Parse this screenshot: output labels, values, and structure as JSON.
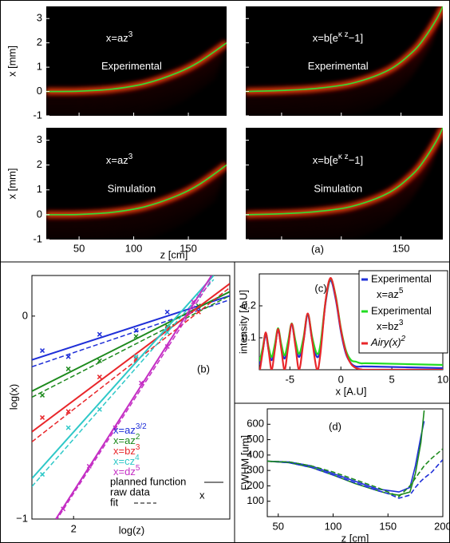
{
  "chart_data": [
    {
      "type": "heatmap",
      "label": "(a)",
      "xlabel": "z [cm]",
      "ylabel": "x [mm]",
      "xlim": [
        20,
        185
      ],
      "ylim": [
        -1,
        3.5
      ],
      "xticks": [
        50,
        100,
        150
      ],
      "yticks": [
        -1,
        0,
        1,
        2,
        3
      ],
      "color": "#33dd33",
      "subplots": [
        {
          "formula": "x=az",
          "exponent": "3",
          "text": "Experimental",
          "x": [
            20,
            50,
            80,
            110,
            140,
            160,
            185
          ],
          "values": [
            0,
            0.012,
            0.096,
            0.32,
            0.77,
            1.22,
            2.0
          ]
        },
        {
          "formula": "x=b[e",
          "exponent": "κ z",
          "formula_end": "−1]",
          "text": "Experimental",
          "x": [
            20,
            50,
            80,
            110,
            140,
            160,
            170,
            180,
            185
          ],
          "values": [
            0,
            0.04,
            0.13,
            0.35,
            0.89,
            1.64,
            2.23,
            3.0,
            3.5
          ]
        },
        {
          "formula": "x=az",
          "exponent": "3",
          "text": "Simulation",
          "x": [
            20,
            50,
            80,
            110,
            140,
            160,
            185
          ],
          "values": [
            0,
            0.012,
            0.096,
            0.32,
            0.77,
            1.22,
            2.0
          ]
        },
        {
          "formula": "x=b[e",
          "exponent": "κ z",
          "formula_end": "−1]",
          "text": "Simulation",
          "x": [
            20,
            50,
            80,
            110,
            140,
            160,
            170,
            180,
            185
          ],
          "values": [
            0,
            0.04,
            0.13,
            0.35,
            0.89,
            1.64,
            2.23,
            3.0,
            3.5
          ]
        }
      ]
    },
    {
      "type": "loglines",
      "label": "(b)",
      "xlabel": "log(z)",
      "ylabel": "log(x)",
      "xlim": [
        1.92,
        2.3
      ],
      "ylim": [
        -1,
        0.2
      ],
      "xticks": [
        2
      ],
      "yticks": [
        {
          "value": -1,
          "label": "−1"
        },
        0
      ],
      "legend_items": {
        "planned": "planned function",
        "raw": "raw data",
        "fit": "fit"
      },
      "series": [
        {
          "name": "x=az",
          "exponent": "3/2",
          "color": "#1f2fd8",
          "x": [
            1.92,
            2.3
          ],
          "values": [
            -0.216,
            0.1
          ],
          "fit": [
            -0.23,
            0.1
          ],
          "raw_x": [
            1.94,
            1.99,
            2.05,
            2.12,
            2.18,
            2.24
          ],
          "raw_y": [
            -0.17,
            -0.2,
            -0.09,
            -0.07,
            0.02,
            0.04
          ]
        },
        {
          "name": "x=az",
          "exponent": "2",
          "color": "#1d8a1d",
          "x": [
            1.92,
            2.3
          ],
          "values": [
            -0.37,
            0.12
          ],
          "fit": [
            -0.38,
            0.12
          ],
          "raw_x": [
            1.94,
            1.99,
            2.05,
            2.12,
            2.18,
            2.24
          ],
          "raw_y": [
            -0.39,
            -0.26,
            -0.22,
            -0.1,
            -0.05,
            0.05
          ]
        },
        {
          "name": "x=bz",
          "exponent": "3",
          "color": "#e8262a",
          "x": [
            1.92,
            2.3
          ],
          "values": [
            -0.57,
            0.16
          ],
          "fit": [
            -0.6,
            0.16
          ],
          "raw_x": [
            1.94,
            1.99,
            2.05,
            2.12,
            2.18,
            2.24
          ],
          "raw_y": [
            -0.5,
            -0.47,
            -0.3,
            -0.21,
            -0.06,
            0.02
          ]
        },
        {
          "name": "x=cz",
          "exponent": "4",
          "color": "#2ec8c8",
          "x": [
            1.92,
            2.269
          ],
          "values": [
            -0.8,
            0.2
          ],
          "fit": [
            -0.82,
            0.2
          ],
          "raw_x": [
            1.94,
            1.99,
            2.05,
            2.12,
            2.18,
            2.24
          ],
          "raw_y": [
            -0.78,
            -0.55,
            -0.46,
            -0.2,
            -0.08,
            0.1
          ]
        },
        {
          "name": "x=dz",
          "exponent": "5",
          "color": "#c42ec4",
          "x": [
            1.966,
            2.265
          ],
          "values": [
            -1,
            0.2
          ],
          "fit": [
            -0.99,
            0.2
          ],
          "raw_x": [
            1.98,
            2.03,
            2.08,
            2.13,
            2.18,
            2.23
          ],
          "raw_y": [
            -0.95,
            -0.74,
            -0.55,
            -0.33,
            -0.15,
            0.07
          ]
        }
      ]
    },
    {
      "type": "line",
      "label": "(c)",
      "xlabel": "x [A.U]",
      "ylabel": "intensity [A.U]",
      "xlim": [
        -8,
        10
      ],
      "ylim": [
        0,
        0.3
      ],
      "xticks": [
        -5,
        0,
        5,
        10
      ],
      "yticks": [
        0.1,
        0.2
      ],
      "x": [
        -8,
        -7.94,
        -7.66,
        -7.37,
        -7.08,
        -6.79,
        -6.47,
        -6.16,
        -5.84,
        -5.52,
        -5.17,
        -4.82,
        -4.45,
        -4.09,
        -3.67,
        -3.25,
        -2.8,
        -2.34,
        -2,
        -1.5,
        -1.02,
        -0.5,
        0,
        0.5,
        1,
        1.5,
        2,
        3,
        10
      ],
      "series": [
        {
          "name": "Experimental",
          "formula": "x=az",
          "exponent": "5",
          "color": "#1f2fd8",
          "values": [
            0.03,
            0.02,
            0.06,
            0.11,
            0.06,
            0.03,
            0.07,
            0.125,
            0.07,
            0.035,
            0.08,
            0.14,
            0.08,
            0.04,
            0.09,
            0.17,
            0.09,
            0.04,
            0.07,
            0.21,
            0.28,
            0.22,
            0.12,
            0.05,
            0.02,
            0.01,
            0.01,
            0.01,
            0.005
          ]
        },
        {
          "name": "Experimental",
          "formula": "x=bz",
          "exponent": "3",
          "color": "#22dd22",
          "values": [
            0.04,
            0.03,
            0.07,
            0.115,
            0.07,
            0.04,
            0.08,
            0.13,
            0.08,
            0.045,
            0.09,
            0.145,
            0.09,
            0.05,
            0.1,
            0.175,
            0.1,
            0.05,
            0.08,
            0.215,
            0.285,
            0.23,
            0.13,
            0.06,
            0.03,
            0.025,
            0.02,
            0.02,
            0.015
          ]
        },
        {
          "name": "Airy(x)",
          "exponent": "2",
          "color": "#e8262a",
          "values": [
            0.003,
            0,
            0.058,
            0.117,
            0.058,
            0,
            0.064,
            0.128,
            0.064,
            0,
            0.072,
            0.144,
            0.072,
            0,
            0.088,
            0.176,
            0.088,
            0,
            0.052,
            0.215,
            0.287,
            0.226,
            0.126,
            0.054,
            0.018,
            0.005,
            0.001,
            0,
            0
          ]
        }
      ]
    },
    {
      "type": "line",
      "label": "(d)",
      "xlabel": "z [cm]",
      "ylabel": "FWHM [um]",
      "xlim": [
        40,
        200
      ],
      "ylim": [
        0,
        700
      ],
      "xticks": [
        50,
        100,
        150,
        200
      ],
      "yticks": [
        100,
        200,
        300,
        400,
        500,
        600
      ],
      "x": [
        40,
        60,
        80,
        100,
        120,
        140,
        150,
        160,
        170,
        175,
        180,
        183,
        190,
        200
      ],
      "series": [
        {
          "color": "#1f2fd8",
          "dash": false,
          "values": [
            360,
            355,
            330,
            280,
            230,
            180,
            170,
            160,
            190,
            330,
            520,
            620,
            null,
            null
          ]
        },
        {
          "color": "#1d8a1d",
          "dash": false,
          "values": [
            360,
            350,
            320,
            270,
            215,
            170,
            150,
            140,
            160,
            280,
            480,
            690,
            null,
            null
          ]
        },
        {
          "color": "#1f2fd8",
          "dash": true,
          "values": [
            360,
            350,
            320,
            270,
            220,
            170,
            150,
            120,
            140,
            190,
            230,
            250,
            290,
            370
          ]
        },
        {
          "color": "#1d8a1d",
          "dash": true,
          "values": [
            360,
            355,
            330,
            290,
            240,
            190,
            160,
            130,
            200,
            250,
            300,
            330,
            380,
            440
          ]
        }
      ]
    }
  ]
}
